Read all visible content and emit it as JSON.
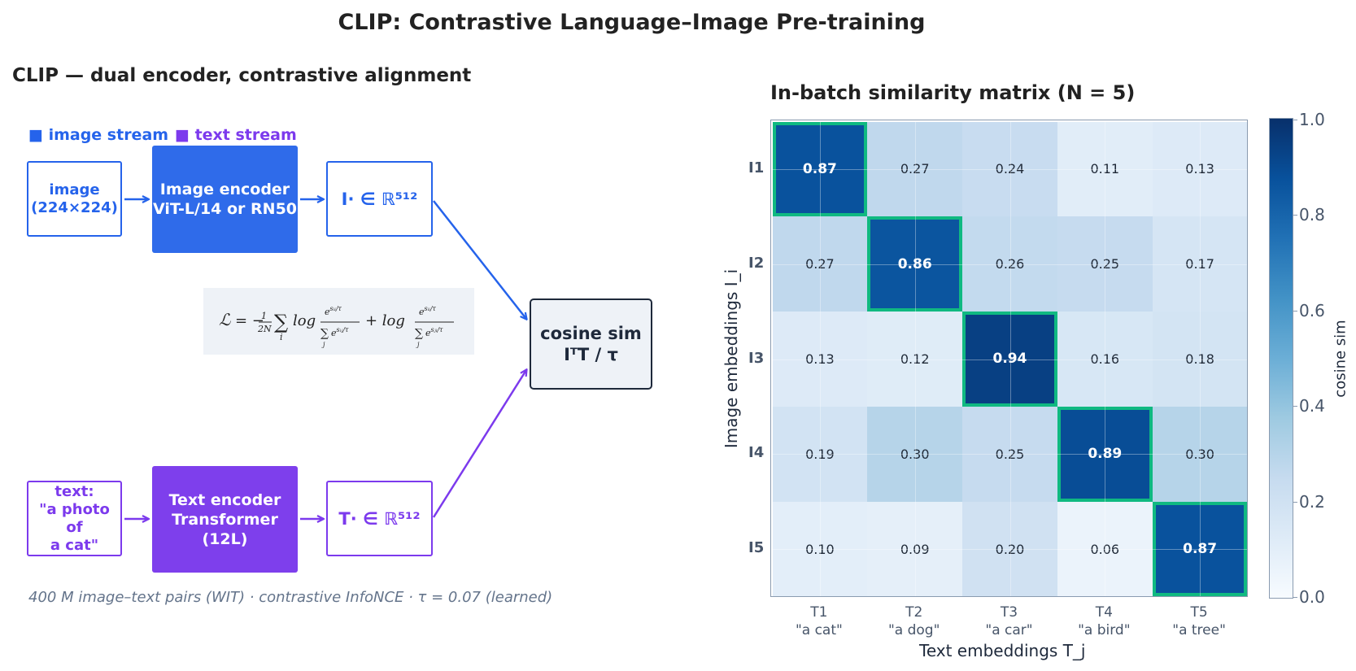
{
  "title": "CLIP: Contrastive Language–Image Pre-training",
  "left_panel": {
    "title": "CLIP — dual encoder, contrastive alignment",
    "legend": {
      "image_label": "■ image stream",
      "text_label": "■ text stream",
      "image_color": "#2563eb",
      "text_color": "#7c3aed"
    },
    "image_input": "image\n(224×224)",
    "image_encoder": "Image encoder\nViT-L/14 or RN50",
    "image_embedding": "I· ∈ ℝ⁵¹²",
    "text_input": "text:\n\"a photo of\na cat\"",
    "text_encoder": "Text encoder\nTransformer (12L)",
    "text_embedding": "T· ∈ ℝ⁵¹²",
    "cosine": "cosine sim\nIᵀT / τ",
    "footnote": "400 M image–text pairs (WIT) · contrastive InfoNCE · τ = 0.07 (learned)"
  },
  "chart_data": {
    "type": "heatmap",
    "title": "In-batch similarity matrix  (N = 5)",
    "xlabel": "Text embeddings  T_j",
    "ylabel": "Image embeddings  I_i",
    "row_labels": [
      "I1",
      "I2",
      "I3",
      "I4",
      "I5"
    ],
    "col_labels": [
      {
        "id": "T1",
        "caption": "\"a cat\""
      },
      {
        "id": "T2",
        "caption": "\"a dog\""
      },
      {
        "id": "T3",
        "caption": "\"a car\""
      },
      {
        "id": "T4",
        "caption": "\"a bird\""
      },
      {
        "id": "T5",
        "caption": "\"a tree\""
      }
    ],
    "values": [
      [
        0.87,
        0.27,
        0.24,
        0.11,
        0.13
      ],
      [
        0.27,
        0.86,
        0.26,
        0.25,
        0.17
      ],
      [
        0.13,
        0.12,
        0.94,
        0.16,
        0.18
      ],
      [
        0.19,
        0.3,
        0.25,
        0.89,
        0.3
      ],
      [
        0.1,
        0.09,
        0.2,
        0.06,
        0.87
      ]
    ],
    "highlight_diagonal_color": "#10b981",
    "colormap": "Blues",
    "colorbar": {
      "label": "cosine sim",
      "min": 0.0,
      "max": 1.0,
      "ticks": [
        "0.0",
        "0.2",
        "0.4",
        "0.6",
        "0.8",
        "1.0"
      ]
    }
  }
}
